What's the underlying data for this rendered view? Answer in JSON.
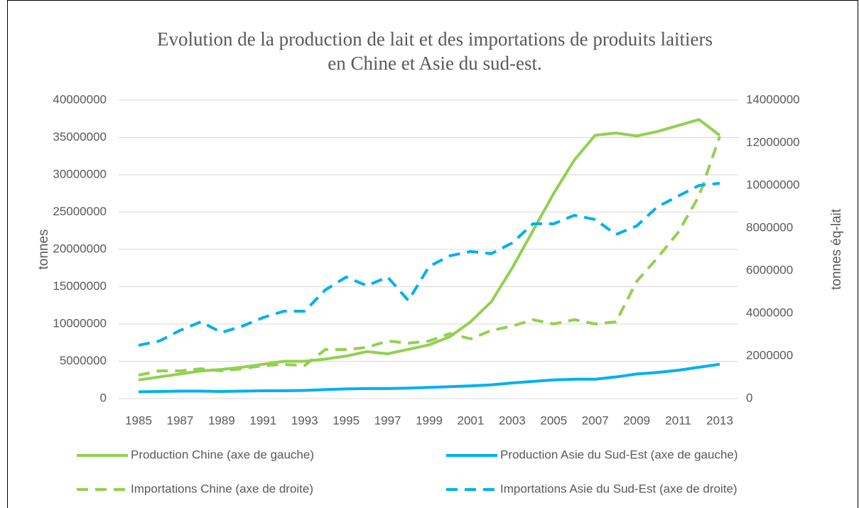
{
  "chart_data": {
    "type": "line",
    "title": [
      "Evolution de la production de lait et des importations de produits laitiers",
      "en Chine et Asie du sud-est."
    ],
    "ylabel": "tonnes",
    "y2label": "tonnes éq-lait",
    "x": [
      1985,
      1986,
      1987,
      1988,
      1989,
      1990,
      1991,
      1992,
      1993,
      1994,
      1995,
      1996,
      1997,
      1998,
      1999,
      2000,
      2001,
      2002,
      2003,
      2004,
      2005,
      2006,
      2007,
      2008,
      2009,
      2010,
      2011,
      2012,
      2013
    ],
    "xlim": [
      1985,
      2013
    ],
    "xticks": [
      1985,
      1987,
      1989,
      1991,
      1993,
      1995,
      1997,
      1999,
      2001,
      2003,
      2005,
      2007,
      2009,
      2011,
      2013
    ],
    "ylim": [
      0,
      40000000
    ],
    "yticks": [
      0,
      5000000,
      10000000,
      15000000,
      20000000,
      25000000,
      30000000,
      35000000,
      40000000
    ],
    "y2lim": [
      0,
      14000000
    ],
    "y2ticks": [
      0,
      2000000,
      4000000,
      6000000,
      8000000,
      10000000,
      12000000,
      14000000
    ],
    "grid": true,
    "legend": "bottom",
    "series": [
      {
        "name": "Production Chine (axe de gauche)",
        "color": "#92d050",
        "axis": "y",
        "dashed": false,
        "values": [
          2500000,
          2900000,
          3300000,
          3700000,
          3900000,
          4200000,
          4600000,
          5000000,
          5000000,
          5300000,
          5700000,
          6300000,
          6000000,
          6600000,
          7200000,
          8300000,
          10300000,
          13000000,
          17500000,
          22500000,
          27500000,
          32000000,
          35300000,
          35600000,
          35200000,
          35800000,
          36600000,
          37400000,
          35300000
        ]
      },
      {
        "name": "Production Asie du Sud-Est (axe de gauche)",
        "color": "#00b0f0",
        "axis": "y",
        "dashed": false,
        "values": [
          900000,
          950000,
          1000000,
          1000000,
          950000,
          1000000,
          1050000,
          1050000,
          1100000,
          1200000,
          1300000,
          1350000,
          1350000,
          1400000,
          1500000,
          1600000,
          1700000,
          1850000,
          2100000,
          2300000,
          2500000,
          2600000,
          2600000,
          2900000,
          3300000,
          3500000,
          3800000,
          4200000,
          4600000
        ]
      },
      {
        "name": "Importations Chine (axe de droite)",
        "color": "#92d050",
        "axis": "y2",
        "dashed": true,
        "values": [
          1100000,
          1300000,
          1300000,
          1400000,
          1300000,
          1400000,
          1550000,
          1600000,
          1550000,
          2300000,
          2300000,
          2400000,
          2700000,
          2600000,
          2700000,
          3050000,
          2800000,
          3200000,
          3400000,
          3700000,
          3500000,
          3700000,
          3500000,
          3600000,
          5500000,
          6600000,
          7800000,
          9500000,
          12300000
        ]
      },
      {
        "name": "Importations Asie du Sud-Est (axe de droite)",
        "color": "#00b0f0",
        "axis": "y2",
        "dashed": true,
        "values": [
          2500000,
          2700000,
          3200000,
          3600000,
          3100000,
          3400000,
          3800000,
          4100000,
          4100000,
          5100000,
          5700000,
          5300000,
          5700000,
          4600000,
          6200000,
          6700000,
          6900000,
          6800000,
          7300000,
          8200000,
          8200000,
          8600000,
          8400000,
          7700000,
          8100000,
          9000000,
          9500000,
          10000000,
          10100000
        ]
      }
    ]
  }
}
